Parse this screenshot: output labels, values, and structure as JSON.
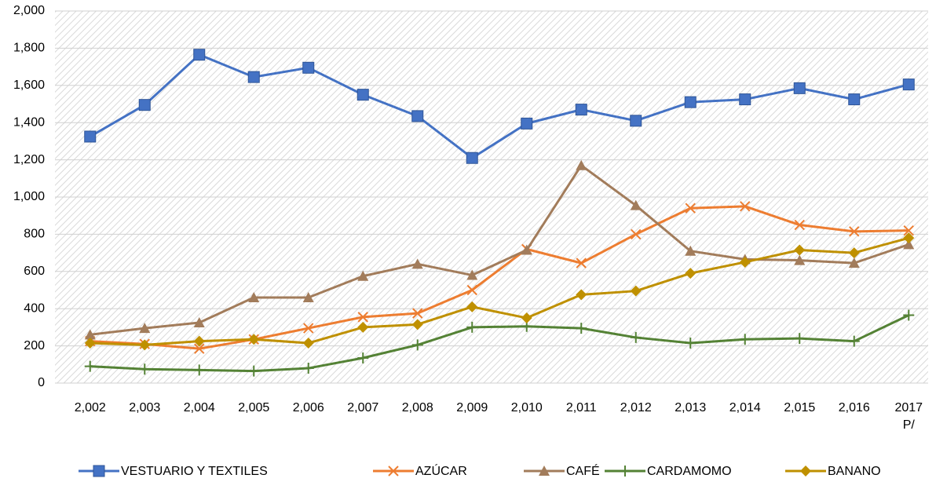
{
  "chart_data": {
    "type": "line",
    "categories": [
      "2,002",
      "2,003",
      "2,004",
      "2,005",
      "2,006",
      "2,007",
      "2,008",
      "2,009",
      "2,010",
      "2,011",
      "2,012",
      "2,013",
      "2,014",
      "2,015",
      "2,016",
      "2017 P/"
    ],
    "series": [
      {
        "name": "VESTUARIO Y TEXTILES",
        "color": "#4472c4",
        "marker": "square",
        "values": [
          1325,
          1495,
          1765,
          1645,
          1695,
          1550,
          1435,
          1210,
          1395,
          1470,
          1410,
          1510,
          1525,
          1585,
          1525,
          1605
        ]
      },
      {
        "name": "AZÚCAR",
        "color": "#ed7d31",
        "marker": "x",
        "values": [
          225,
          210,
          185,
          235,
          295,
          355,
          375,
          500,
          720,
          645,
          800,
          940,
          950,
          850,
          815,
          820
        ]
      },
      {
        "name": "CAFÉ",
        "color": "#a27c5b",
        "marker": "triangle",
        "values": [
          260,
          295,
          325,
          460,
          460,
          575,
          640,
          580,
          715,
          1170,
          955,
          710,
          665,
          660,
          645,
          745
        ]
      },
      {
        "name": "CARDAMOMO",
        "color": "#548235",
        "marker": "plus",
        "values": [
          90,
          75,
          70,
          65,
          80,
          135,
          205,
          300,
          305,
          295,
          245,
          215,
          235,
          240,
          225,
          365
        ]
      },
      {
        "name": "BANANO",
        "color": "#bf9000",
        "marker": "diamond",
        "values": [
          215,
          205,
          225,
          235,
          215,
          300,
          315,
          410,
          350,
          475,
          495,
          590,
          650,
          715,
          700,
          780
        ]
      }
    ],
    "ylim": [
      0,
      2000
    ],
    "yticks": [
      0,
      200,
      400,
      600,
      800,
      {
        "value": 1000,
        "label": "1,000"
      },
      {
        "value": 1200,
        "label": "1,200"
      },
      {
        "value": 1400,
        "label": "1,400"
      },
      {
        "value": 1600,
        "label": "1,600"
      },
      {
        "value": 1800,
        "label": "1,800"
      },
      {
        "value": 2000,
        "label": "2,000"
      }
    ],
    "grid": true,
    "legend": "bottom"
  }
}
